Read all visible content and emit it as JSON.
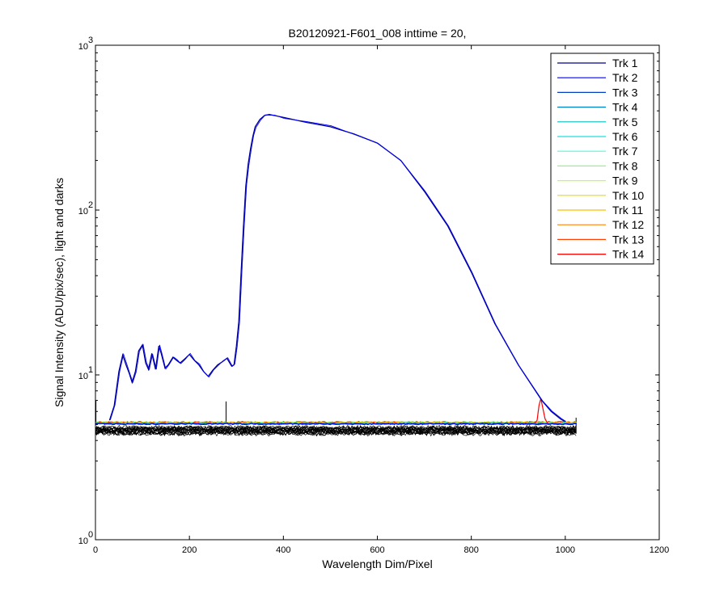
{
  "chart_data": {
    "type": "line",
    "title": "B20120921-F601_008 inttime = 20,",
    "xlabel": "Wavelength Dim/Pixel",
    "ylabel": "Signal Intensity (ADU/pix/sec), light and darks",
    "xlim": [
      0,
      1200
    ],
    "ylim": [
      1,
      1000
    ],
    "yscale": "log",
    "x_ticks": [
      0,
      200,
      400,
      600,
      800,
      1000,
      1200
    ],
    "x_tick_labels": [
      "0",
      "200",
      "400",
      "600",
      "800",
      "1000",
      "1200"
    ],
    "y_ticks": [
      1,
      10,
      100,
      1000
    ],
    "y_tick_labels": [
      {
        "base": "10",
        "exp": "0"
      },
      {
        "base": "10",
        "exp": "1"
      },
      {
        "base": "10",
        "exp": "2"
      },
      {
        "base": "10",
        "exp": "3"
      }
    ],
    "grid": false,
    "legend_position": "top-right",
    "series": [
      {
        "name": "Trk 1",
        "color": "#00008f"
      },
      {
        "name": "Trk 2",
        "color": "#0000ff"
      },
      {
        "name": "Trk 3",
        "color": "#003fbf"
      },
      {
        "name": "Trk 4",
        "color": "#007fbf"
      },
      {
        "name": "Trk 5",
        "color": "#00bfbf"
      },
      {
        "name": "Trk 6",
        "color": "#20dfdf"
      },
      {
        "name": "Trk 7",
        "color": "#40ffdf"
      },
      {
        "name": "Trk 8",
        "color": "#80ff80"
      },
      {
        "name": "Trk 9",
        "color": "#bfff40"
      },
      {
        "name": "Trk 10",
        "color": "#dfdf00"
      },
      {
        "name": "Trk 11",
        "color": "#ffbf00"
      },
      {
        "name": "Trk 12",
        "color": "#ff8000"
      },
      {
        "name": "Trk 13",
        "color": "#ff4000"
      },
      {
        "name": "Trk 14",
        "color": "#ff0000"
      }
    ],
    "light_signal": {
      "series": "Trk 1",
      "x": [
        30,
        40,
        50,
        58,
        65,
        72,
        78,
        85,
        92,
        100,
        107,
        113,
        120,
        128,
        135,
        140,
        148,
        155,
        165,
        172,
        180,
        190,
        200,
        210,
        220,
        230,
        240,
        250,
        260,
        270,
        280,
        290,
        295,
        300,
        305,
        310,
        315,
        320,
        325,
        330,
        335,
        340,
        350,
        360,
        370,
        380,
        400,
        450,
        500,
        550,
        600,
        650,
        700,
        750,
        800,
        850,
        900,
        950,
        970,
        990,
        1000
      ],
      "y": [
        5.3,
        6.5,
        10.5,
        13.2,
        11.5,
        10.2,
        9.0,
        10.5,
        14.0,
        15.2,
        11.8,
        10.8,
        13.5,
        10.8,
        15.0,
        13.5,
        11.0,
        11.5,
        12.8,
        12.3,
        11.8,
        12.5,
        13.3,
        12.3,
        11.5,
        10.5,
        9.8,
        10.7,
        11.5,
        12.0,
        12.6,
        11.3,
        11.5,
        15.0,
        21.0,
        42.0,
        80.0,
        140.0,
        190.0,
        235.0,
        280.0,
        320.0,
        355.0,
        375.0,
        380.0,
        375.0,
        365.0,
        340.0,
        320.0,
        290.0,
        255.0,
        200.0,
        130.0,
        80.0,
        42.0,
        20.5,
        11.5,
        7.0,
        6.0,
        5.4,
        5.2
      ]
    },
    "dark_band": {
      "x": [
        0,
        1024
      ],
      "y_low": 4.3,
      "y_high": 5.3,
      "typical_light": 5.1
    },
    "annotations_features": {
      "spike_x": 278,
      "spike_y": 6.9,
      "red_peak_x": 948,
      "red_peak_y": 7.2
    }
  }
}
